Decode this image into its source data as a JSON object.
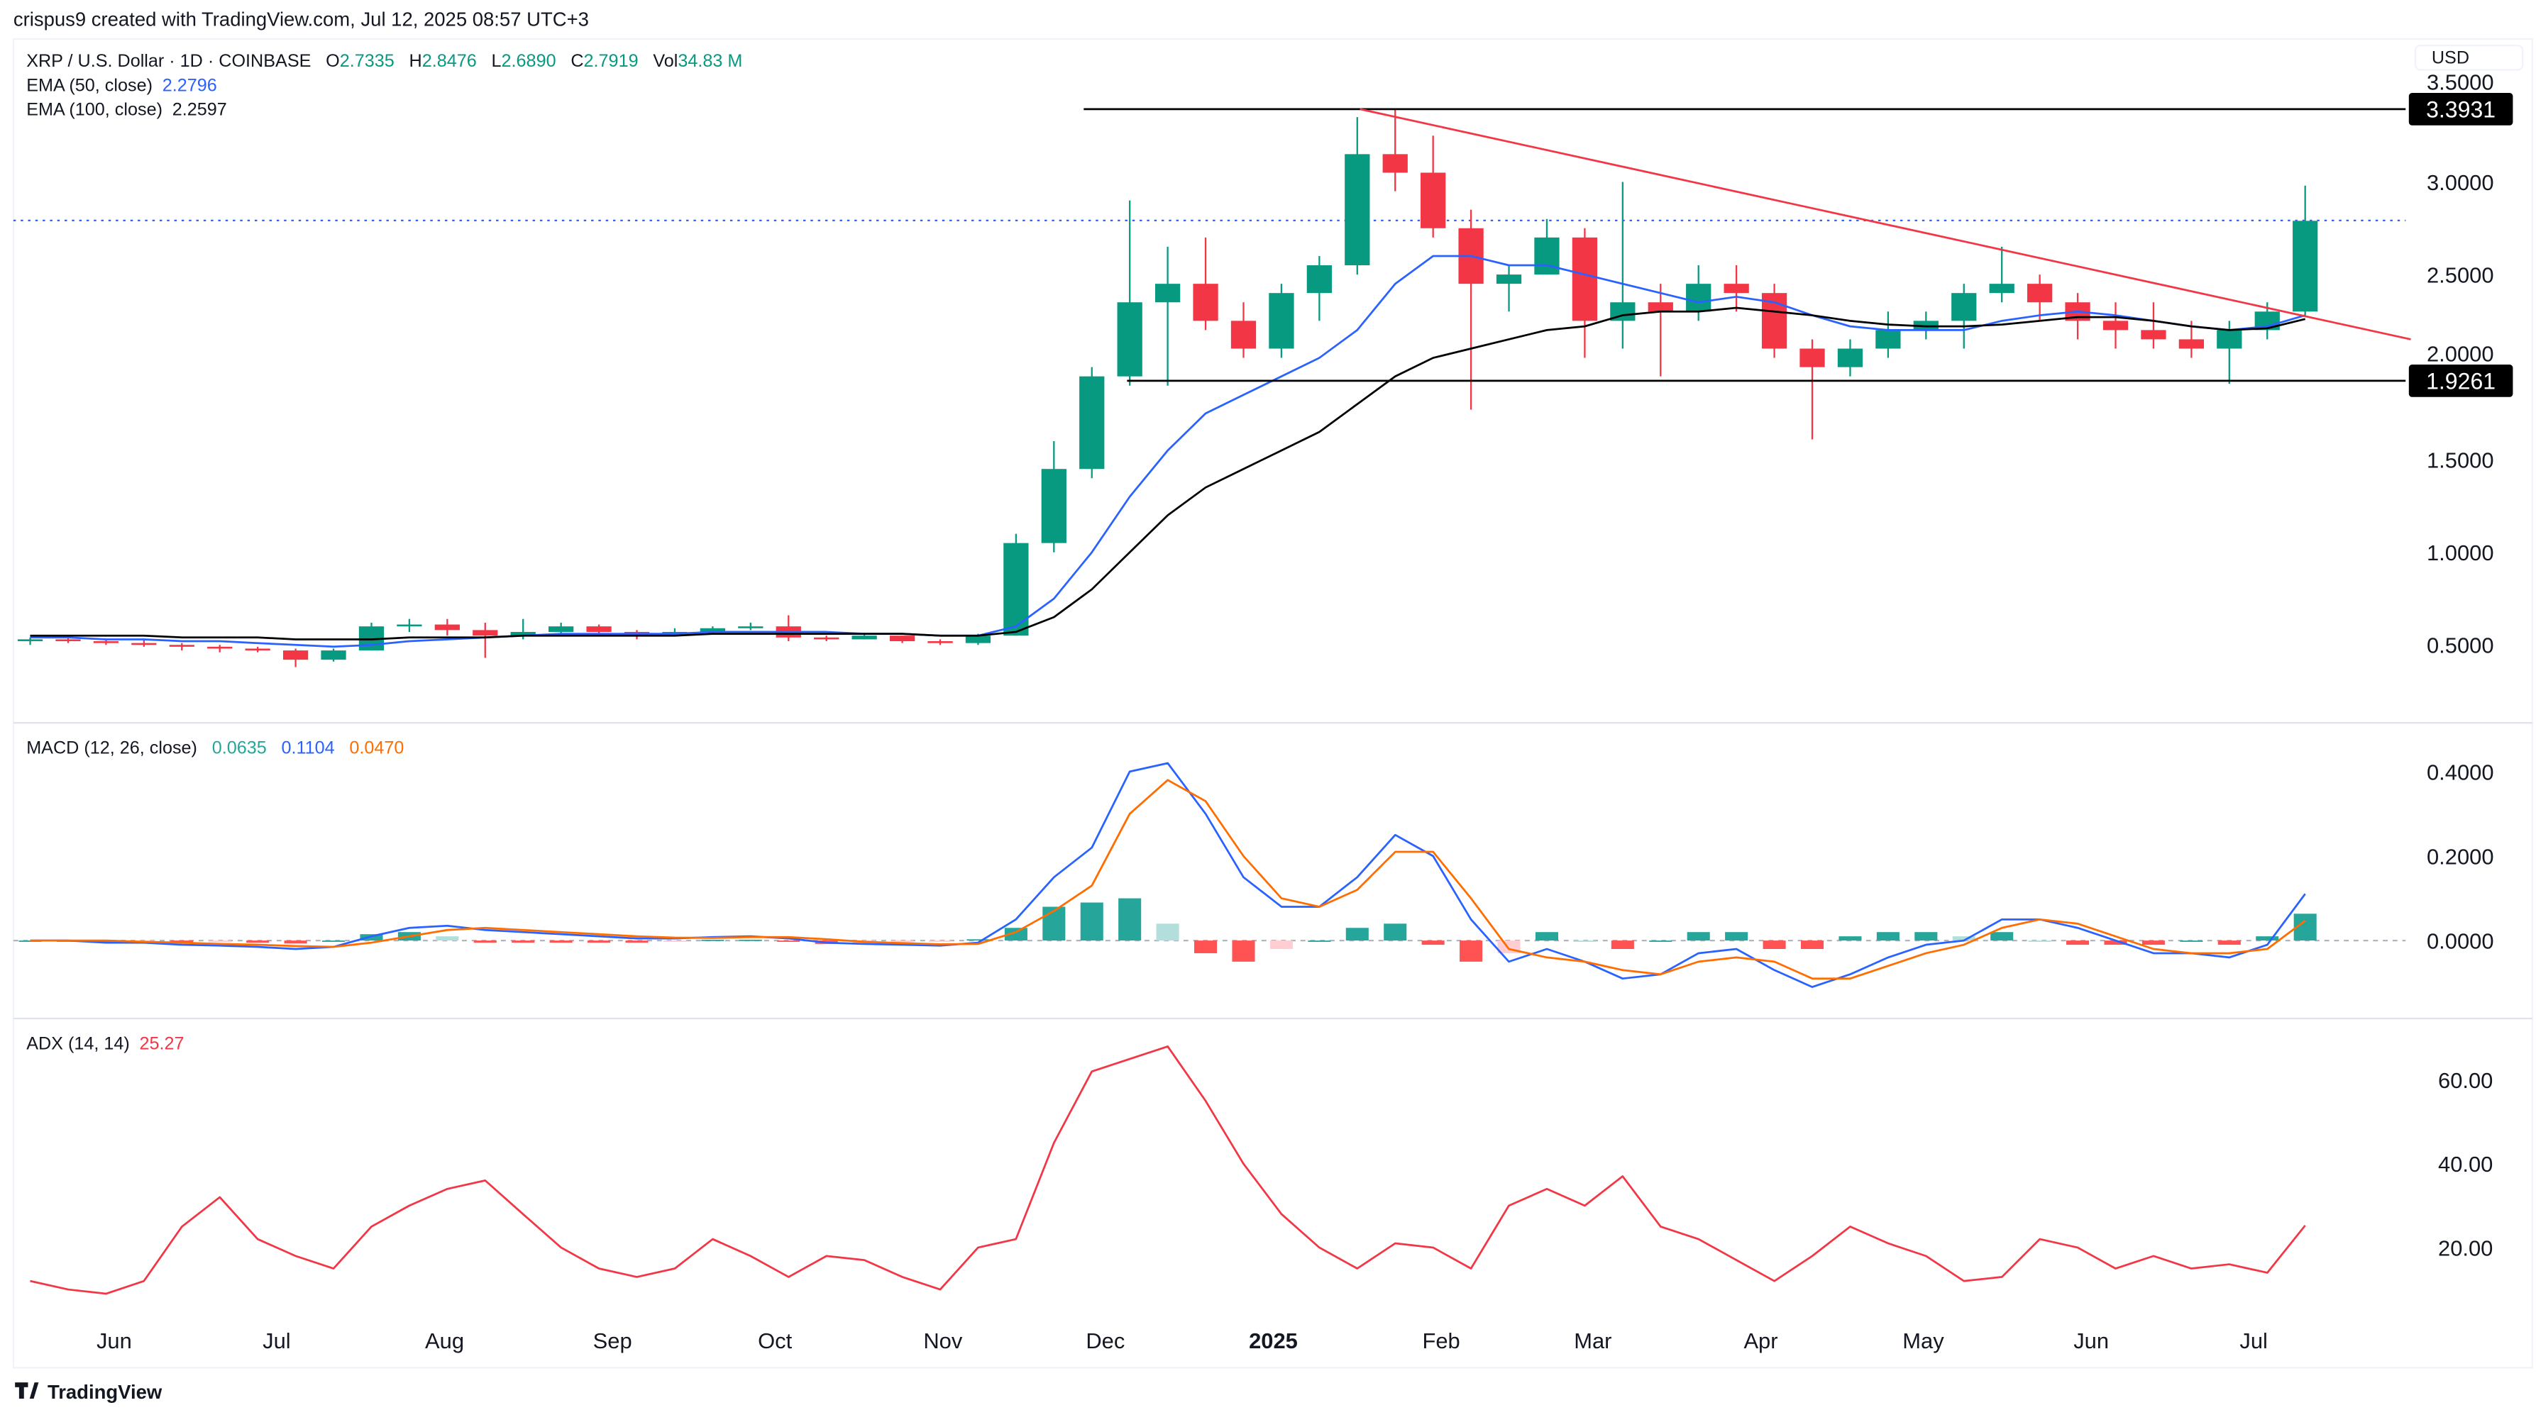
{
  "header": {
    "credit": "crispus9 created with TradingView.com, Jul 12, 2025 08:57 UTC+3"
  },
  "footer": {
    "brand": "TradingView"
  },
  "legend": {
    "symbol": "XRP / U.S. Dollar · 1D · COINBASE",
    "o_label": "O",
    "o": "2.7335",
    "h_label": "H",
    "h": "2.8476",
    "l_label": "L",
    "l": "2.6890",
    "c_label": "C",
    "c": "2.7919",
    "vol_label": "Vol",
    "vol": "34.83 M",
    "ema50_label": "EMA (50, close)",
    "ema50": "2.2796",
    "ema100_label": "EMA (100, close)",
    "ema100": "2.2597",
    "macd_label": "MACD (12, 26, close)",
    "macd_hist": "0.0635",
    "macd": "0.1104",
    "macd_signal": "0.0470",
    "adx_label": "ADX (14, 14)",
    "adx": "25.27"
  },
  "currency": "USD",
  "colors": {
    "up": "#089981",
    "down": "#f23645",
    "ema50": "#2962ff",
    "ema100": "#000000",
    "macd": "#2962ff",
    "signal": "#ff6d00",
    "hist_up": "#26a69a",
    "hist_up_light": "#b2dfdb",
    "hist_down": "#ff5252",
    "hist_down_light": "#ffcdd2",
    "adx": "#f23645",
    "trendline": "#f23645"
  },
  "chart_data": {
    "type": "candlestick",
    "title": "XRP / U.S. Dollar · 1D · COINBASE",
    "price_axis": {
      "ticks": [
        "0.5000",
        "1.0000",
        "1.5000",
        "2.0000",
        "2.5000",
        "3.0000",
        "3.5000"
      ],
      "range": [
        0.2,
        3.8
      ]
    },
    "macd_axis": {
      "ticks": [
        "0.0000",
        "0.2000",
        "0.4000"
      ],
      "range": [
        -0.2,
        0.5
      ]
    },
    "adx_axis": {
      "ticks": [
        "20.00",
        "40.00",
        "60.00"
      ],
      "range": [
        0,
        75
      ]
    },
    "time_axis": [
      {
        "label": "Jun",
        "date": "2024-06-01"
      },
      {
        "label": "Jul",
        "date": "2024-07-01"
      },
      {
        "label": "Aug",
        "date": "2024-08-01"
      },
      {
        "label": "Sep",
        "date": "2024-09-01"
      },
      {
        "label": "Oct",
        "date": "2024-10-01"
      },
      {
        "label": "Nov",
        "date": "2024-11-01"
      },
      {
        "label": "Dec",
        "date": "2024-12-01"
      },
      {
        "label": "2025",
        "date": "2025-01-01",
        "bold": true
      },
      {
        "label": "Feb",
        "date": "2025-02-01"
      },
      {
        "label": "Mar",
        "date": "2025-03-01"
      },
      {
        "label": "Apr",
        "date": "2025-04-01"
      },
      {
        "label": "May",
        "date": "2025-05-01"
      },
      {
        "label": "Jun",
        "date": "2025-06-01"
      },
      {
        "label": "Jul",
        "date": "2025-07-01"
      }
    ],
    "levels": [
      {
        "label": "3.3931",
        "value": 3.3931,
        "from": "2024-11-27"
      },
      {
        "label": "1.9261",
        "value": 1.9261,
        "from": "2024-12-05"
      }
    ],
    "last_price": 2.7919,
    "trendline": {
      "from": [
        "2025-01-17",
        3.3931
      ],
      "to": [
        "2025-07-30",
        2.15
      ]
    },
    "columns": [
      "date",
      "open",
      "high",
      "low",
      "close",
      "ema50",
      "ema100",
      "macd",
      "signal",
      "hist",
      "adx"
    ],
    "rows": [
      [
        "2024-05-13",
        0.52,
        0.54,
        0.5,
        0.53,
        0.54,
        0.55,
        0,
        0,
        0,
        12
      ],
      [
        "2024-05-20",
        0.53,
        0.55,
        0.51,
        0.52,
        0.54,
        0.55,
        0,
        0,
        0,
        10
      ],
      [
        "2024-05-27",
        0.52,
        0.53,
        0.5,
        0.51,
        0.53,
        0.55,
        -0.005,
        0,
        -0.005,
        9
      ],
      [
        "2024-06-03",
        0.51,
        0.53,
        0.49,
        0.5,
        0.53,
        0.55,
        -0.005,
        -0.003,
        -0.002,
        12
      ],
      [
        "2024-06-10",
        0.5,
        0.51,
        0.47,
        0.49,
        0.52,
        0.54,
        -0.01,
        -0.005,
        -0.005,
        25
      ],
      [
        "2024-06-17",
        0.49,
        0.5,
        0.46,
        0.48,
        0.52,
        0.54,
        -0.012,
        -0.008,
        -0.004,
        32
      ],
      [
        "2024-06-24",
        0.48,
        0.49,
        0.46,
        0.47,
        0.51,
        0.54,
        -0.015,
        -0.01,
        -0.005,
        22
      ],
      [
        "2024-07-01",
        0.47,
        0.48,
        0.38,
        0.42,
        0.5,
        0.53,
        -0.02,
        -0.013,
        -0.007,
        18
      ],
      [
        "2024-07-08",
        0.42,
        0.48,
        0.41,
        0.47,
        0.49,
        0.53,
        -0.015,
        -0.015,
        0,
        15
      ],
      [
        "2024-07-15",
        0.47,
        0.62,
        0.47,
        0.6,
        0.5,
        0.53,
        0.01,
        -0.005,
        0.015,
        25
      ],
      [
        "2024-07-22",
        0.6,
        0.64,
        0.57,
        0.61,
        0.52,
        0.54,
        0.03,
        0.01,
        0.02,
        30
      ],
      [
        "2024-07-29",
        0.61,
        0.64,
        0.55,
        0.58,
        0.53,
        0.54,
        0.035,
        0.025,
        0.01,
        34
      ],
      [
        "2024-08-05",
        0.58,
        0.62,
        0.43,
        0.55,
        0.54,
        0.54,
        0.025,
        0.03,
        -0.005,
        36
      ],
      [
        "2024-08-12",
        0.55,
        0.64,
        0.53,
        0.57,
        0.55,
        0.55,
        0.02,
        0.025,
        -0.005,
        28
      ],
      [
        "2024-08-19",
        0.57,
        0.62,
        0.55,
        0.6,
        0.56,
        0.55,
        0.015,
        0.02,
        -0.005,
        20
      ],
      [
        "2024-08-26",
        0.6,
        0.61,
        0.56,
        0.57,
        0.56,
        0.55,
        0.01,
        0.015,
        -0.005,
        15
      ],
      [
        "2024-09-02",
        0.57,
        0.58,
        0.53,
        0.56,
        0.56,
        0.55,
        0.005,
        0.01,
        -0.005,
        13
      ],
      [
        "2024-09-09",
        0.56,
        0.59,
        0.55,
        0.57,
        0.56,
        0.55,
        0.005,
        0.007,
        -0.002,
        15
      ],
      [
        "2024-09-16",
        0.57,
        0.6,
        0.56,
        0.59,
        0.57,
        0.56,
        0.008,
        0.006,
        0.002,
        22
      ],
      [
        "2024-09-23",
        0.59,
        0.62,
        0.58,
        0.6,
        0.57,
        0.56,
        0.01,
        0.008,
        0.002,
        18
      ],
      [
        "2024-09-30",
        0.6,
        0.66,
        0.52,
        0.54,
        0.57,
        0.56,
        0.005,
        0.008,
        -0.003,
        13
      ],
      [
        "2024-10-07",
        0.54,
        0.55,
        0.52,
        0.53,
        0.57,
        0.56,
        -0.005,
        0.003,
        -0.008,
        18
      ],
      [
        "2024-10-14",
        0.53,
        0.56,
        0.53,
        0.55,
        0.56,
        0.56,
        -0.008,
        -0.003,
        -0.005,
        17
      ],
      [
        "2024-10-21",
        0.55,
        0.55,
        0.51,
        0.52,
        0.56,
        0.56,
        -0.01,
        -0.006,
        -0.004,
        13
      ],
      [
        "2024-10-28",
        0.52,
        0.53,
        0.5,
        0.51,
        0.55,
        0.55,
        -0.012,
        -0.009,
        -0.003,
        10
      ],
      [
        "2024-11-04",
        0.51,
        0.56,
        0.5,
        0.55,
        0.55,
        0.55,
        -0.005,
        -0.008,
        0.003,
        20
      ],
      [
        "2024-11-11",
        0.55,
        1.1,
        0.55,
        1.05,
        0.6,
        0.57,
        0.05,
        0.02,
        0.03,
        22
      ],
      [
        "2024-11-18",
        1.05,
        1.6,
        1.0,
        1.45,
        0.75,
        0.65,
        0.15,
        0.07,
        0.08,
        45
      ],
      [
        "2024-11-25",
        1.45,
        2.0,
        1.4,
        1.95,
        1.0,
        0.8,
        0.22,
        0.13,
        0.09,
        62
      ],
      [
        "2024-12-02",
        1.95,
        2.9,
        1.9,
        2.35,
        1.3,
        1.0,
        0.4,
        0.3,
        0.1,
        65
      ],
      [
        "2024-12-09",
        2.35,
        2.65,
        1.9,
        2.45,
        1.55,
        1.2,
        0.42,
        0.38,
        0.04,
        68
      ],
      [
        "2024-12-16",
        2.45,
        2.7,
        2.2,
        2.25,
        1.75,
        1.35,
        0.3,
        0.33,
        -0.03,
        55
      ],
      [
        "2024-12-23",
        2.25,
        2.35,
        2.05,
        2.1,
        1.85,
        1.45,
        0.15,
        0.2,
        -0.05,
        40
      ],
      [
        "2024-12-30",
        2.1,
        2.45,
        2.05,
        2.4,
        1.95,
        1.55,
        0.08,
        0.1,
        -0.02,
        28
      ],
      [
        "2025-01-06",
        2.4,
        2.6,
        2.25,
        2.55,
        2.05,
        1.65,
        0.08,
        0.08,
        0,
        20
      ],
      [
        "2025-01-13",
        2.55,
        3.35,
        2.5,
        3.15,
        2.2,
        1.8,
        0.15,
        0.12,
        0.03,
        15
      ],
      [
        "2025-01-20",
        3.15,
        3.3931,
        2.95,
        3.05,
        2.45,
        1.95,
        0.25,
        0.21,
        0.04,
        21
      ],
      [
        "2025-01-27",
        3.05,
        3.25,
        2.7,
        2.75,
        2.6,
        2.05,
        0.2,
        0.21,
        -0.01,
        20
      ],
      [
        "2025-02-03",
        2.75,
        2.85,
        1.77,
        2.45,
        2.6,
        2.1,
        0.05,
        0.1,
        -0.05,
        15
      ],
      [
        "2025-02-10",
        2.45,
        2.55,
        2.3,
        2.5,
        2.55,
        2.15,
        -0.05,
        -0.02,
        -0.03,
        30
      ],
      [
        "2025-02-17",
        2.5,
        2.8,
        2.5,
        2.7,
        2.55,
        2.2,
        -0.02,
        -0.04,
        0.02,
        34
      ],
      [
        "2025-02-24",
        2.7,
        2.75,
        2.05,
        2.25,
        2.5,
        2.22,
        -0.05,
        -0.05,
        0,
        30
      ],
      [
        "2025-03-03",
        2.25,
        3.0,
        2.1,
        2.35,
        2.45,
        2.28,
        -0.09,
        -0.07,
        -0.02,
        37
      ],
      [
        "2025-03-10",
        2.35,
        2.45,
        1.95,
        2.3,
        2.4,
        2.3,
        -0.08,
        -0.08,
        0,
        25
      ],
      [
        "2025-03-17",
        2.3,
        2.55,
        2.25,
        2.45,
        2.35,
        2.3,
        -0.03,
        -0.05,
        0.02,
        22
      ],
      [
        "2025-03-24",
        2.45,
        2.55,
        2.3,
        2.4,
        2.38,
        2.32,
        -0.02,
        -0.04,
        0.02,
        17
      ],
      [
        "2025-03-31",
        2.4,
        2.45,
        2.05,
        2.1,
        2.35,
        2.3,
        -0.07,
        -0.05,
        -0.02,
        12
      ],
      [
        "2025-04-07",
        2.1,
        2.15,
        1.61,
        2.0,
        2.28,
        2.28,
        -0.11,
        -0.09,
        -0.02,
        18
      ],
      [
        "2025-04-14",
        2.0,
        2.15,
        1.95,
        2.1,
        2.22,
        2.25,
        -0.08,
        -0.09,
        0.01,
        25
      ],
      [
        "2025-04-21",
        2.1,
        2.3,
        2.05,
        2.2,
        2.2,
        2.23,
        -0.04,
        -0.06,
        0.02,
        21
      ],
      [
        "2025-04-28",
        2.2,
        2.3,
        2.15,
        2.25,
        2.2,
        2.22,
        -0.01,
        -0.03,
        0.02,
        18
      ],
      [
        "2025-05-05",
        2.25,
        2.45,
        2.1,
        2.4,
        2.2,
        2.22,
        0,
        -0.01,
        0.01,
        12
      ],
      [
        "2025-05-12",
        2.4,
        2.65,
        2.35,
        2.45,
        2.25,
        2.23,
        0.05,
        0.03,
        0.02,
        13
      ],
      [
        "2025-05-19",
        2.45,
        2.5,
        2.25,
        2.35,
        2.28,
        2.25,
        0.05,
        0.05,
        0,
        22
      ],
      [
        "2025-05-26",
        2.35,
        2.4,
        2.15,
        2.25,
        2.3,
        2.27,
        0.03,
        0.04,
        -0.01,
        20
      ],
      [
        "2025-06-02",
        2.25,
        2.35,
        2.1,
        2.2,
        2.28,
        2.27,
        0,
        0.01,
        -0.01,
        15
      ],
      [
        "2025-06-09",
        2.2,
        2.35,
        2.1,
        2.15,
        2.25,
        2.25,
        -0.03,
        -0.02,
        -0.01,
        18
      ],
      [
        "2025-06-16",
        2.15,
        2.25,
        2.05,
        2.1,
        2.22,
        2.22,
        -0.03,
        -0.03,
        0,
        15
      ],
      [
        "2025-06-23",
        2.1,
        2.25,
        1.91,
        2.2,
        2.2,
        2.2,
        -0.04,
        -0.03,
        -0.01,
        16
      ],
      [
        "2025-06-30",
        2.2,
        2.35,
        2.15,
        2.3,
        2.22,
        2.21,
        -0.01,
        -0.02,
        0.01,
        14
      ],
      [
        "2025-07-07",
        2.3,
        2.98,
        2.28,
        2.79,
        2.2796,
        2.2597,
        0.1104,
        0.047,
        0.0635,
        25.27
      ]
    ]
  }
}
